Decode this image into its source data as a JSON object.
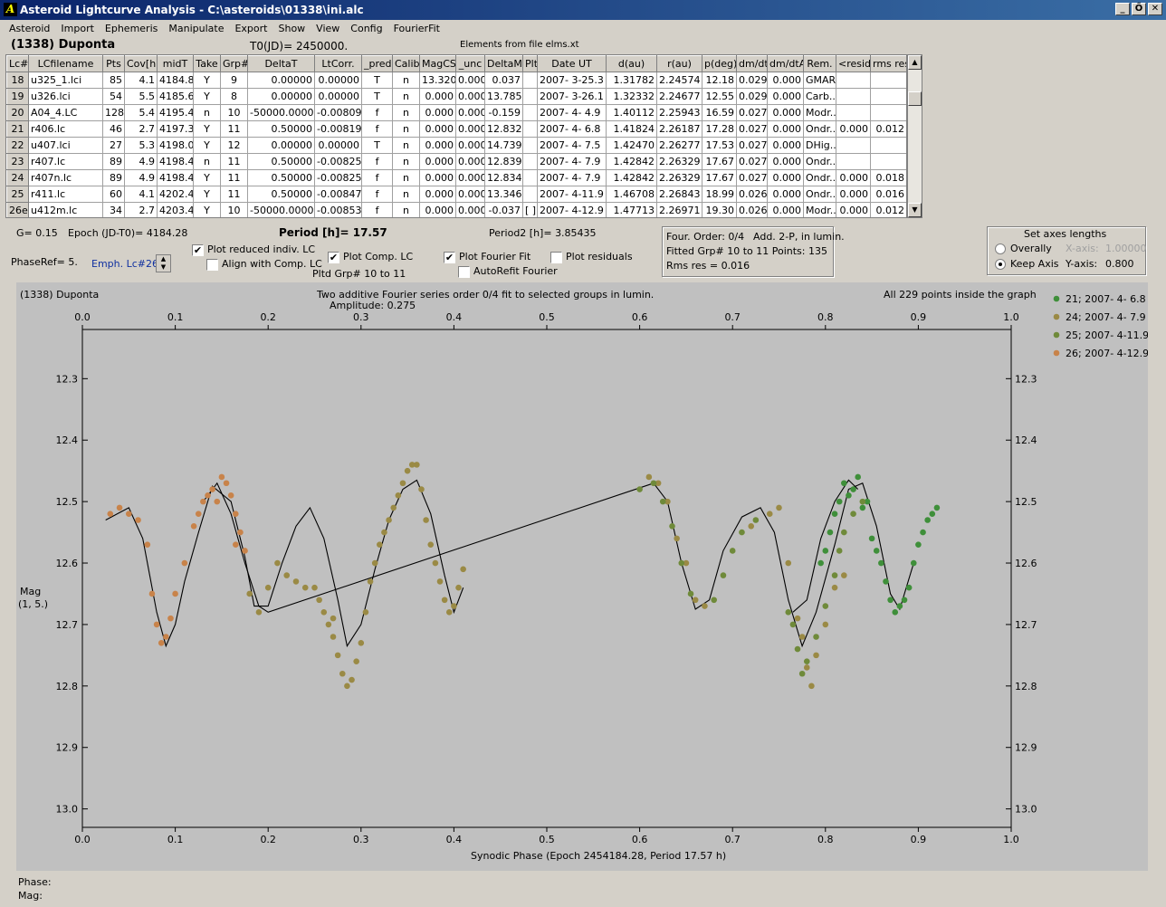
{
  "window": {
    "title": "Asteroid Lightcurve Analysis - C:\\asteroids\\01338\\ini.alc",
    "icon_glyph": "A",
    "buttons": [
      "_",
      "Ő",
      "✕"
    ]
  },
  "menu": [
    "Asteroid",
    "Import",
    "Ephemeris",
    "Manipulate",
    "Export",
    "Show",
    "View",
    "Config",
    "FourierFit"
  ],
  "header": {
    "asteroid": "(1338) Duponta",
    "t0": "T0(JD)= 2450000.",
    "elements": "Elements from file elms.xt"
  },
  "table": {
    "columns": [
      "Lc#",
      "LCfilename",
      "Pts",
      "Cov[h]",
      "midT",
      "Take",
      "Grp#",
      "DeltaT",
      "LtCorr.",
      "_pred.",
      "Calib.",
      "MagCS",
      "_unc",
      "DeltaM",
      "Plt",
      "Date UT",
      "d(au)",
      "r(au)",
      "p(deg)",
      "dm/dt",
      "dm/dtA",
      "Rem.",
      "<resid>",
      "rms res"
    ],
    "rows": [
      [
        "18",
        "u325_1.lci",
        "85",
        "4.1",
        "4184.8",
        "Y",
        "9",
        "0.00000",
        "0.00000",
        "T",
        "n",
        "13.320",
        "0.000",
        "0.037",
        "",
        "2007- 3-25.3",
        "1.31782",
        "2.24574",
        "12.18",
        "0.029",
        "0.000",
        "GMAR",
        "",
        ""
      ],
      [
        "19",
        "u326.lci",
        "54",
        "5.5",
        "4185.6",
        "Y",
        "8",
        "0.00000",
        "0.00000",
        "T",
        "n",
        "0.000",
        "0.000",
        "13.785",
        "",
        "2007- 3-26.1",
        "1.32332",
        "2.24677",
        "12.55",
        "0.029",
        "0.000",
        "Carb...",
        "",
        ""
      ],
      [
        "20",
        "A04_4.LC",
        "128",
        "5.4",
        "4195.4",
        "n",
        "10",
        "-50000.00000",
        "-0.00809",
        "f",
        "n",
        "0.000",
        "0.000",
        "-0.159",
        "",
        "2007- 4- 4.9",
        "1.40112",
        "2.25943",
        "16.59",
        "0.027",
        "0.000",
        "Modr...",
        "",
        ""
      ],
      [
        "21",
        "r406.lc",
        "46",
        "2.7",
        "4197.3",
        "Y",
        "11",
        "0.50000",
        "-0.00819",
        "f",
        "n",
        "0.000",
        "0.000",
        "12.832",
        "",
        "2007- 4- 6.8",
        "1.41824",
        "2.26187",
        "17.28",
        "0.027",
        "0.000",
        "Ondr...",
        "0.000",
        "0.012"
      ],
      [
        "22",
        "u407.lci",
        "27",
        "5.3",
        "4198.0",
        "Y",
        "12",
        "0.00000",
        "0.00000",
        "T",
        "n",
        "0.000",
        "0.000",
        "14.739",
        "",
        "2007- 4- 7.5",
        "1.42470",
        "2.26277",
        "17.53",
        "0.027",
        "0.000",
        "DHig...",
        "",
        ""
      ],
      [
        "23",
        "r407.lc",
        "89",
        "4.9",
        "4198.4",
        "n",
        "11",
        "0.50000",
        "-0.00825",
        "f",
        "n",
        "0.000",
        "0.000",
        "12.839",
        "",
        "2007- 4- 7.9",
        "1.42842",
        "2.26329",
        "17.67",
        "0.027",
        "0.000",
        "Ondr...",
        "",
        ""
      ],
      [
        "24",
        "r407n.lc",
        "89",
        "4.9",
        "4198.4",
        "Y",
        "11",
        "0.50000",
        "-0.00825",
        "f",
        "n",
        "0.000",
        "0.000",
        "12.834",
        "",
        "2007- 4- 7.9",
        "1.42842",
        "2.26329",
        "17.67",
        "0.027",
        "0.000",
        "Ondr...",
        "0.000",
        "0.018"
      ],
      [
        "25",
        "r411.lc",
        "60",
        "4.1",
        "4202.4",
        "Y",
        "11",
        "0.50000",
        "-0.00847",
        "f",
        "n",
        "0.000",
        "0.000",
        "13.346",
        "",
        "2007- 4-11.9",
        "1.46708",
        "2.26843",
        "18.99",
        "0.026",
        "0.000",
        "Ondr...",
        "0.000",
        "0.016"
      ],
      [
        "26e",
        "u412m.lc",
        "34",
        "2.7",
        "4203.4",
        "Y",
        "10",
        "-50000.00000",
        "-0.00853",
        "f",
        "n",
        "0.000",
        "0.000",
        "-0.037",
        "[ ]",
        "2007- 4-12.9",
        "1.47713",
        "2.26971",
        "19.30",
        "0.026",
        "0.000",
        "Modr...",
        "0.000",
        "0.012"
      ]
    ]
  },
  "controls": {
    "g": "G= 0.15",
    "epoch": "Epoch (JD-T0)= 4184.28",
    "period": "Period [h]= 17.57",
    "period2": "Period2 [h]= 3.85435",
    "phaseref": "PhaseRef= 5.",
    "emph": "Emph. Lc#26:",
    "plot_reduced": "Plot reduced indiv. LC",
    "align_comp": "Align with Comp. LC",
    "plot_comp": "Plot Comp. LC",
    "pltd_grp": "Pltd Grp#  10 to   11",
    "plot_fourier": "Plot Fourier Fit",
    "autorefit": "AutoRefit Fourier",
    "plot_resid": "Plot residuals",
    "check": "✔"
  },
  "fourier_box": {
    "order": "Four. Order:  0/4",
    "add": "Add. 2-P, in lumin.",
    "fitted": "Fitted Grp# 10 to 11 Points: 135",
    "rms": "Rms res      = 0.016"
  },
  "axes_box": {
    "title": "Set axes lengths",
    "overally": "Overally",
    "keep": "Keep Axis",
    "xaxis_label": "X-axis:",
    "xaxis_val": "1.00000",
    "yaxis_label": "Y-axis:",
    "yaxis_val": "0.800"
  },
  "plot": {
    "name": "(1338) Duponta",
    "desc1": "Two additive Fourier series order 0/4 fit to selected groups in lumin.",
    "desc2": "Amplitude: 0.275",
    "inside": "All 229 points inside the graph",
    "xlabel": "Synodic Phase (Epoch 2454184.28, Period 17.57 h)",
    "ylabel1": "Mag",
    "ylabel2": "(1, 5.)"
  },
  "status": {
    "phase": "Phase:",
    "mag": "Mag:"
  },
  "chart_data": {
    "type": "scatter",
    "x_ticks": [
      "0.0",
      "0.1",
      "0.2",
      "0.3",
      "0.4",
      "0.5",
      "0.6",
      "0.7",
      "0.8",
      "0.9",
      "1.0"
    ],
    "y_ticks": [
      "12.3",
      "12.4",
      "12.5",
      "12.6",
      "12.7",
      "12.8",
      "12.9",
      "13.0"
    ],
    "xlim": [
      0,
      1
    ],
    "ylim": [
      12.22,
      13.03
    ],
    "y_inverted": true,
    "xlabel": "Synodic Phase (Epoch 2454184.28, Period 17.57 h)",
    "ylabel": "Mag (1, 5.)",
    "legend_position": "top-right",
    "series": [
      {
        "name": "21; 2007- 4- 6.8",
        "color": "#3f8f3a",
        "points": [
          [
            0.82,
            12.47
          ],
          [
            0.825,
            12.49
          ],
          [
            0.83,
            12.48
          ],
          [
            0.835,
            12.46
          ],
          [
            0.84,
            12.51
          ],
          [
            0.845,
            12.5
          ],
          [
            0.85,
            12.56
          ],
          [
            0.855,
            12.58
          ],
          [
            0.86,
            12.6
          ],
          [
            0.865,
            12.63
          ],
          [
            0.87,
            12.66
          ],
          [
            0.875,
            12.68
          ],
          [
            0.88,
            12.67
          ],
          [
            0.885,
            12.66
          ],
          [
            0.89,
            12.64
          ],
          [
            0.895,
            12.6
          ],
          [
            0.9,
            12.57
          ],
          [
            0.905,
            12.55
          ],
          [
            0.91,
            12.53
          ],
          [
            0.915,
            12.52
          ],
          [
            0.92,
            12.51
          ],
          [
            0.805,
            12.55
          ],
          [
            0.81,
            12.52
          ],
          [
            0.815,
            12.5
          ],
          [
            0.8,
            12.58
          ],
          [
            0.795,
            12.6
          ]
        ]
      },
      {
        "name": "24; 2007- 4- 7.9",
        "color": "#9a8a45",
        "points": [
          [
            0.21,
            12.6
          ],
          [
            0.22,
            12.62
          ],
          [
            0.23,
            12.63
          ],
          [
            0.24,
            12.64
          ],
          [
            0.25,
            12.64
          ],
          [
            0.255,
            12.66
          ],
          [
            0.26,
            12.68
          ],
          [
            0.265,
            12.7
          ],
          [
            0.27,
            12.72
          ],
          [
            0.275,
            12.75
          ],
          [
            0.28,
            12.78
          ],
          [
            0.285,
            12.8
          ],
          [
            0.29,
            12.79
          ],
          [
            0.295,
            12.76
          ],
          [
            0.3,
            12.73
          ],
          [
            0.305,
            12.68
          ],
          [
            0.31,
            12.63
          ],
          [
            0.315,
            12.6
          ],
          [
            0.32,
            12.57
          ],
          [
            0.325,
            12.55
          ],
          [
            0.33,
            12.53
          ],
          [
            0.335,
            12.51
          ],
          [
            0.34,
            12.49
          ],
          [
            0.345,
            12.47
          ],
          [
            0.35,
            12.45
          ],
          [
            0.355,
            12.44
          ],
          [
            0.36,
            12.44
          ],
          [
            0.365,
            12.48
          ],
          [
            0.37,
            12.53
          ],
          [
            0.375,
            12.57
          ],
          [
            0.38,
            12.6
          ],
          [
            0.385,
            12.63
          ],
          [
            0.39,
            12.66
          ],
          [
            0.395,
            12.68
          ],
          [
            0.4,
            12.67
          ],
          [
            0.405,
            12.64
          ],
          [
            0.41,
            12.61
          ],
          [
            0.27,
            12.69
          ],
          [
            0.18,
            12.65
          ],
          [
            0.19,
            12.68
          ],
          [
            0.2,
            12.64
          ],
          [
            0.61,
            12.46
          ],
          [
            0.62,
            12.47
          ],
          [
            0.63,
            12.5
          ],
          [
            0.64,
            12.56
          ],
          [
            0.65,
            12.6
          ],
          [
            0.66,
            12.66
          ],
          [
            0.67,
            12.67
          ],
          [
            0.74,
            12.52
          ],
          [
            0.72,
            12.54
          ],
          [
            0.75,
            12.51
          ],
          [
            0.76,
            12.6
          ],
          [
            0.77,
            12.69
          ],
          [
            0.775,
            12.72
          ],
          [
            0.78,
            12.77
          ],
          [
            0.785,
            12.8
          ],
          [
            0.79,
            12.75
          ],
          [
            0.8,
            12.7
          ],
          [
            0.81,
            12.64
          ],
          [
            0.82,
            12.62
          ]
        ]
      },
      {
        "name": "25; 2007- 4-11.9",
        "color": "#6f8a3a",
        "points": [
          [
            0.6,
            12.48
          ],
          [
            0.615,
            12.47
          ],
          [
            0.625,
            12.5
          ],
          [
            0.635,
            12.54
          ],
          [
            0.645,
            12.6
          ],
          [
            0.655,
            12.65
          ],
          [
            0.68,
            12.66
          ],
          [
            0.69,
            12.62
          ],
          [
            0.7,
            12.58
          ],
          [
            0.71,
            12.55
          ],
          [
            0.725,
            12.53
          ],
          [
            0.76,
            12.68
          ],
          [
            0.765,
            12.7
          ],
          [
            0.77,
            12.74
          ],
          [
            0.775,
            12.78
          ],
          [
            0.78,
            12.76
          ],
          [
            0.79,
            12.72
          ],
          [
            0.8,
            12.67
          ],
          [
            0.81,
            12.62
          ],
          [
            0.815,
            12.58
          ],
          [
            0.82,
            12.55
          ],
          [
            0.83,
            12.52
          ],
          [
            0.84,
            12.5
          ]
        ]
      },
      {
        "name": "26; 2007- 4-12.9",
        "color": "#c8834a",
        "points": [
          [
            0.03,
            12.52
          ],
          [
            0.04,
            12.51
          ],
          [
            0.05,
            12.52
          ],
          [
            0.06,
            12.53
          ],
          [
            0.07,
            12.57
          ],
          [
            0.075,
            12.65
          ],
          [
            0.08,
            12.7
          ],
          [
            0.085,
            12.73
          ],
          [
            0.09,
            12.72
          ],
          [
            0.095,
            12.69
          ],
          [
            0.1,
            12.65
          ],
          [
            0.11,
            12.6
          ],
          [
            0.12,
            12.54
          ],
          [
            0.125,
            12.52
          ],
          [
            0.13,
            12.5
          ],
          [
            0.135,
            12.49
          ],
          [
            0.14,
            12.48
          ],
          [
            0.145,
            12.5
          ],
          [
            0.15,
            12.46
          ],
          [
            0.155,
            12.47
          ],
          [
            0.16,
            12.49
          ],
          [
            0.165,
            12.52
          ],
          [
            0.17,
            12.55
          ],
          [
            0.175,
            12.58
          ],
          [
            0.165,
            12.57
          ]
        ]
      }
    ],
    "fits": [
      {
        "name": "fourier-fit-A",
        "points": [
          [
            0.025,
            12.53
          ],
          [
            0.05,
            12.51
          ],
          [
            0.065,
            12.56
          ],
          [
            0.08,
            12.68
          ],
          [
            0.09,
            12.735
          ],
          [
            0.1,
            12.7
          ],
          [
            0.11,
            12.63
          ],
          [
            0.125,
            12.55
          ],
          [
            0.14,
            12.475
          ],
          [
            0.16,
            12.5
          ],
          [
            0.175,
            12.59
          ],
          [
            0.185,
            12.67
          ],
          [
            0.2,
            12.67
          ],
          [
            0.215,
            12.6
          ],
          [
            0.23,
            12.54
          ],
          [
            0.245,
            12.51
          ],
          [
            0.26,
            12.56
          ],
          [
            0.275,
            12.66
          ],
          [
            0.285,
            12.735
          ],
          [
            0.3,
            12.7
          ],
          [
            0.315,
            12.61
          ],
          [
            0.33,
            12.53
          ],
          [
            0.345,
            12.48
          ],
          [
            0.36,
            12.465
          ],
          [
            0.375,
            12.52
          ],
          [
            0.39,
            12.62
          ],
          [
            0.4,
            12.68
          ],
          [
            0.41,
            12.64
          ]
        ]
      },
      {
        "name": "fourier-fit-B",
        "points": [
          [
            0.13,
            12.5
          ],
          [
            0.145,
            12.47
          ],
          [
            0.16,
            12.52
          ],
          [
            0.175,
            12.6
          ],
          [
            0.19,
            12.67
          ],
          [
            0.2,
            12.68
          ],
          [
            0.615,
            12.47
          ],
          [
            0.63,
            12.5
          ],
          [
            0.645,
            12.6
          ],
          [
            0.66,
            12.675
          ],
          [
            0.675,
            12.66
          ],
          [
            0.69,
            12.58
          ],
          [
            0.71,
            12.525
          ],
          [
            0.73,
            12.51
          ],
          [
            0.745,
            12.55
          ],
          [
            0.76,
            12.66
          ],
          [
            0.775,
            12.735
          ],
          [
            0.79,
            12.68
          ],
          [
            0.81,
            12.57
          ],
          [
            0.825,
            12.48
          ],
          [
            0.84,
            12.47
          ],
          [
            0.855,
            12.54
          ],
          [
            0.87,
            12.65
          ],
          [
            0.88,
            12.675
          ],
          [
            0.895,
            12.6
          ]
        ]
      },
      {
        "name": "fourier-fit-C",
        "points": [
          [
            0.765,
            12.68
          ],
          [
            0.78,
            12.66
          ],
          [
            0.795,
            12.56
          ],
          [
            0.81,
            12.5
          ],
          [
            0.825,
            12.465
          ],
          [
            0.835,
            12.48
          ]
        ]
      }
    ]
  }
}
